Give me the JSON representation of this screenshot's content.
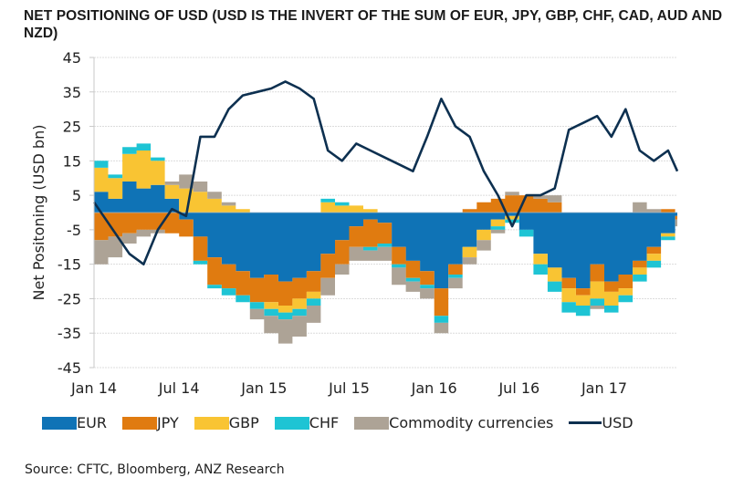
{
  "title": "NET POSITIONING OF USD (USD IS THE INVERT OF THE SUM OF EUR, JPY, GBP, CHF, CAD, AUD AND NZD)",
  "source": "Source: CFTC, Bloomberg, ANZ Research",
  "chart_data": {
    "type": "area",
    "subtype": "stacked area with line overlay",
    "title": "NET POSITIONING OF USD (USD IS THE INVERT OF THE SUM OF EUR, JPY, GBP, CHF, CAD, AUD AND NZD)",
    "xlabel": "",
    "ylabel": "Net Positoning (USD bn)",
    "ylim": [
      -45,
      45
    ],
    "yticks": [
      45,
      35,
      25,
      15,
      5,
      -5,
      -15,
      -25,
      -35,
      -45
    ],
    "xtick_labels": [
      "Jan 14",
      "Jul 14",
      "Jan 15",
      "Jul 15",
      "Jan 16",
      "Jul 16",
      "Jan 17"
    ],
    "xtick_positions": [
      0,
      6,
      12,
      18,
      24,
      30,
      36
    ],
    "grid": true,
    "legend_position": "bottom",
    "x": [
      "Jan 14",
      "Feb 14",
      "Mar 14",
      "Apr 14",
      "May 14",
      "Jun 14",
      "Jul 14",
      "Aug 14",
      "Sep 14",
      "Oct 14",
      "Nov 14",
      "Dec 14",
      "Jan 15",
      "Feb 15",
      "Mar 15",
      "Apr 15",
      "May 15",
      "Jun 15",
      "Jul 15",
      "Aug 15",
      "Sep 15",
      "Oct 15",
      "Nov 15",
      "Dec 15",
      "Jan 16",
      "Feb 16",
      "Mar 16",
      "Apr 16",
      "May 16",
      "Jun 16",
      "Jul 16",
      "Aug 16",
      "Sep 16",
      "Oct 16",
      "Nov 16",
      "Dec 16",
      "Jan 17",
      "Feb 17",
      "Mar 17",
      "Apr 17",
      "May 17",
      "Jun 17"
    ],
    "series": [
      {
        "name": "EUR",
        "color": "#0f73b6",
        "values": [
          6,
          4,
          9,
          7,
          8,
          4,
          -2,
          -7,
          -13,
          -15,
          -17,
          -19,
          -18,
          -20,
          -19,
          -17,
          -12,
          -8,
          -4,
          -2,
          -3,
          -10,
          -14,
          -17,
          -22,
          -15,
          -10,
          -5,
          -2,
          -1,
          -5,
          -12,
          -16,
          -19,
          -22,
          -15,
          -20,
          -18,
          -14,
          -10,
          -6,
          -1
        ]
      },
      {
        "name": "JPY",
        "color": "#e07b10",
        "values": [
          -8,
          -7,
          -6,
          -5,
          -5,
          -6,
          -5,
          -7,
          -8,
          -7,
          -7,
          -7,
          -8,
          -7,
          -6,
          -6,
          -7,
          -7,
          -6,
          -8,
          -6,
          -5,
          -5,
          -4,
          -8,
          -3,
          1,
          3,
          4,
          5,
          5,
          4,
          3,
          -3,
          -2,
          -5,
          -3,
          -4,
          -2,
          -2,
          1,
          -1
        ]
      },
      {
        "name": "GBP",
        "color": "#f9c433",
        "values": [
          7,
          6,
          8,
          11,
          7,
          4,
          7,
          6,
          4,
          2,
          1,
          0,
          -2,
          -2,
          -3,
          -2,
          3,
          2,
          2,
          1,
          0,
          0,
          0,
          0,
          0,
          0,
          -3,
          -3,
          -2,
          -1,
          0,
          -3,
          -4,
          -4,
          -3,
          -5,
          -4,
          -2,
          -2,
          -2,
          -1,
          0
        ]
      },
      {
        "name": "CHF",
        "color": "#1ec4d4",
        "values": [
          2,
          1,
          2,
          2,
          1,
          0,
          0,
          -1,
          -1,
          -2,
          -2,
          -2,
          -2,
          -2,
          -2,
          -2,
          1,
          1,
          0,
          -1,
          -1,
          -1,
          -1,
          -1,
          -2,
          -1,
          0,
          0,
          -1,
          -1,
          -2,
          -3,
          -3,
          -3,
          -3,
          -2,
          -2,
          -2,
          -2,
          -2,
          -1,
          0
        ]
      },
      {
        "name": "Commodity currencies",
        "color": "#ada396",
        "values": [
          -7,
          -6,
          -3,
          -2,
          -1,
          1,
          4,
          3,
          2,
          1,
          0,
          -3,
          -5,
          -7,
          -6,
          -5,
          -5,
          -3,
          -4,
          -3,
          -4,
          -5,
          -3,
          -3,
          -3,
          -3,
          -2,
          -3,
          -1,
          1,
          0,
          1,
          2,
          0,
          0,
          -1,
          0,
          0,
          3,
          1,
          0,
          -2
        ]
      },
      {
        "name": "USD",
        "color": "#0d3050",
        "type": "line",
        "values": [
          3,
          -6,
          -12,
          -15,
          -5,
          1,
          -1,
          22,
          22,
          30,
          34,
          35,
          36,
          38,
          36,
          33,
          18,
          15,
          20,
          18,
          16,
          14,
          12,
          22,
          33,
          25,
          22,
          12,
          5,
          -4,
          5,
          5,
          7,
          24,
          26,
          28,
          22,
          30,
          18,
          15,
          18,
          12
        ]
      }
    ]
  },
  "legend": [
    {
      "label": "EUR",
      "kind": "swatch",
      "color": "#0f73b6"
    },
    {
      "label": "JPY",
      "kind": "swatch",
      "color": "#e07b10"
    },
    {
      "label": "GBP",
      "kind": "swatch",
      "color": "#f9c433"
    },
    {
      "label": "CHF",
      "kind": "swatch",
      "color": "#1ec4d4"
    },
    {
      "label": "Commodity currencies",
      "kind": "swatch",
      "color": "#ada396"
    },
    {
      "label": "USD",
      "kind": "line",
      "color": "#0d3050"
    }
  ]
}
